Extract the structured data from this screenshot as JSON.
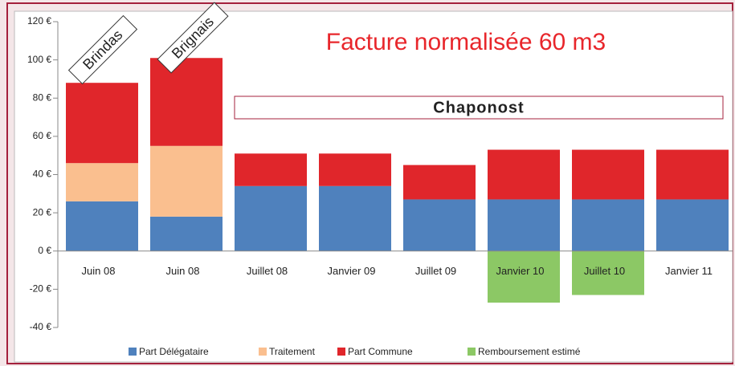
{
  "chart_data": {
    "type": "stacked_bar",
    "title": "Facture normalisée 60 m3",
    "annotations": [
      "Brindas",
      "Brignais",
      "Chaponost"
    ],
    "categories": [
      "Juin 08",
      "Juin 08",
      "Juillet 08",
      "Janvier 09",
      "Juillet 09",
      "Janvier 10",
      "Juillet 10",
      "Janvier 11"
    ],
    "series": [
      {
        "name": "Part Délégataire",
        "color": "#4f81bd",
        "values": [
          26,
          18,
          34,
          34,
          27,
          27,
          27,
          27
        ]
      },
      {
        "name": "Traitement",
        "color": "#fabf8f",
        "values": [
          20,
          37,
          0,
          0,
          0,
          0,
          0,
          0
        ]
      },
      {
        "name": "Part Commune",
        "color": "#e0262b",
        "values": [
          42,
          46,
          17,
          17,
          18,
          26,
          26,
          26
        ]
      },
      {
        "name": "Remboursement estimé",
        "color": "#8cc865",
        "values": [
          0,
          0,
          0,
          0,
          0,
          -27,
          -23,
          0
        ]
      }
    ],
    "ylim": [
      -40,
      120
    ],
    "yticks": [
      {
        "value": -40,
        "label": "-40 €"
      },
      {
        "value": -20,
        "label": "-20 €"
      },
      {
        "value": 0,
        "label": "0 €"
      },
      {
        "value": 20,
        "label": "20 €"
      },
      {
        "value": 40,
        "label": "40 €"
      },
      {
        "value": 60,
        "label": "60 €"
      },
      {
        "value": 80,
        "label": "80 €"
      },
      {
        "value": 100,
        "label": "100 €"
      },
      {
        "value": 120,
        "label": "120 €"
      }
    ],
    "grid": false,
    "legend": "bottom"
  }
}
